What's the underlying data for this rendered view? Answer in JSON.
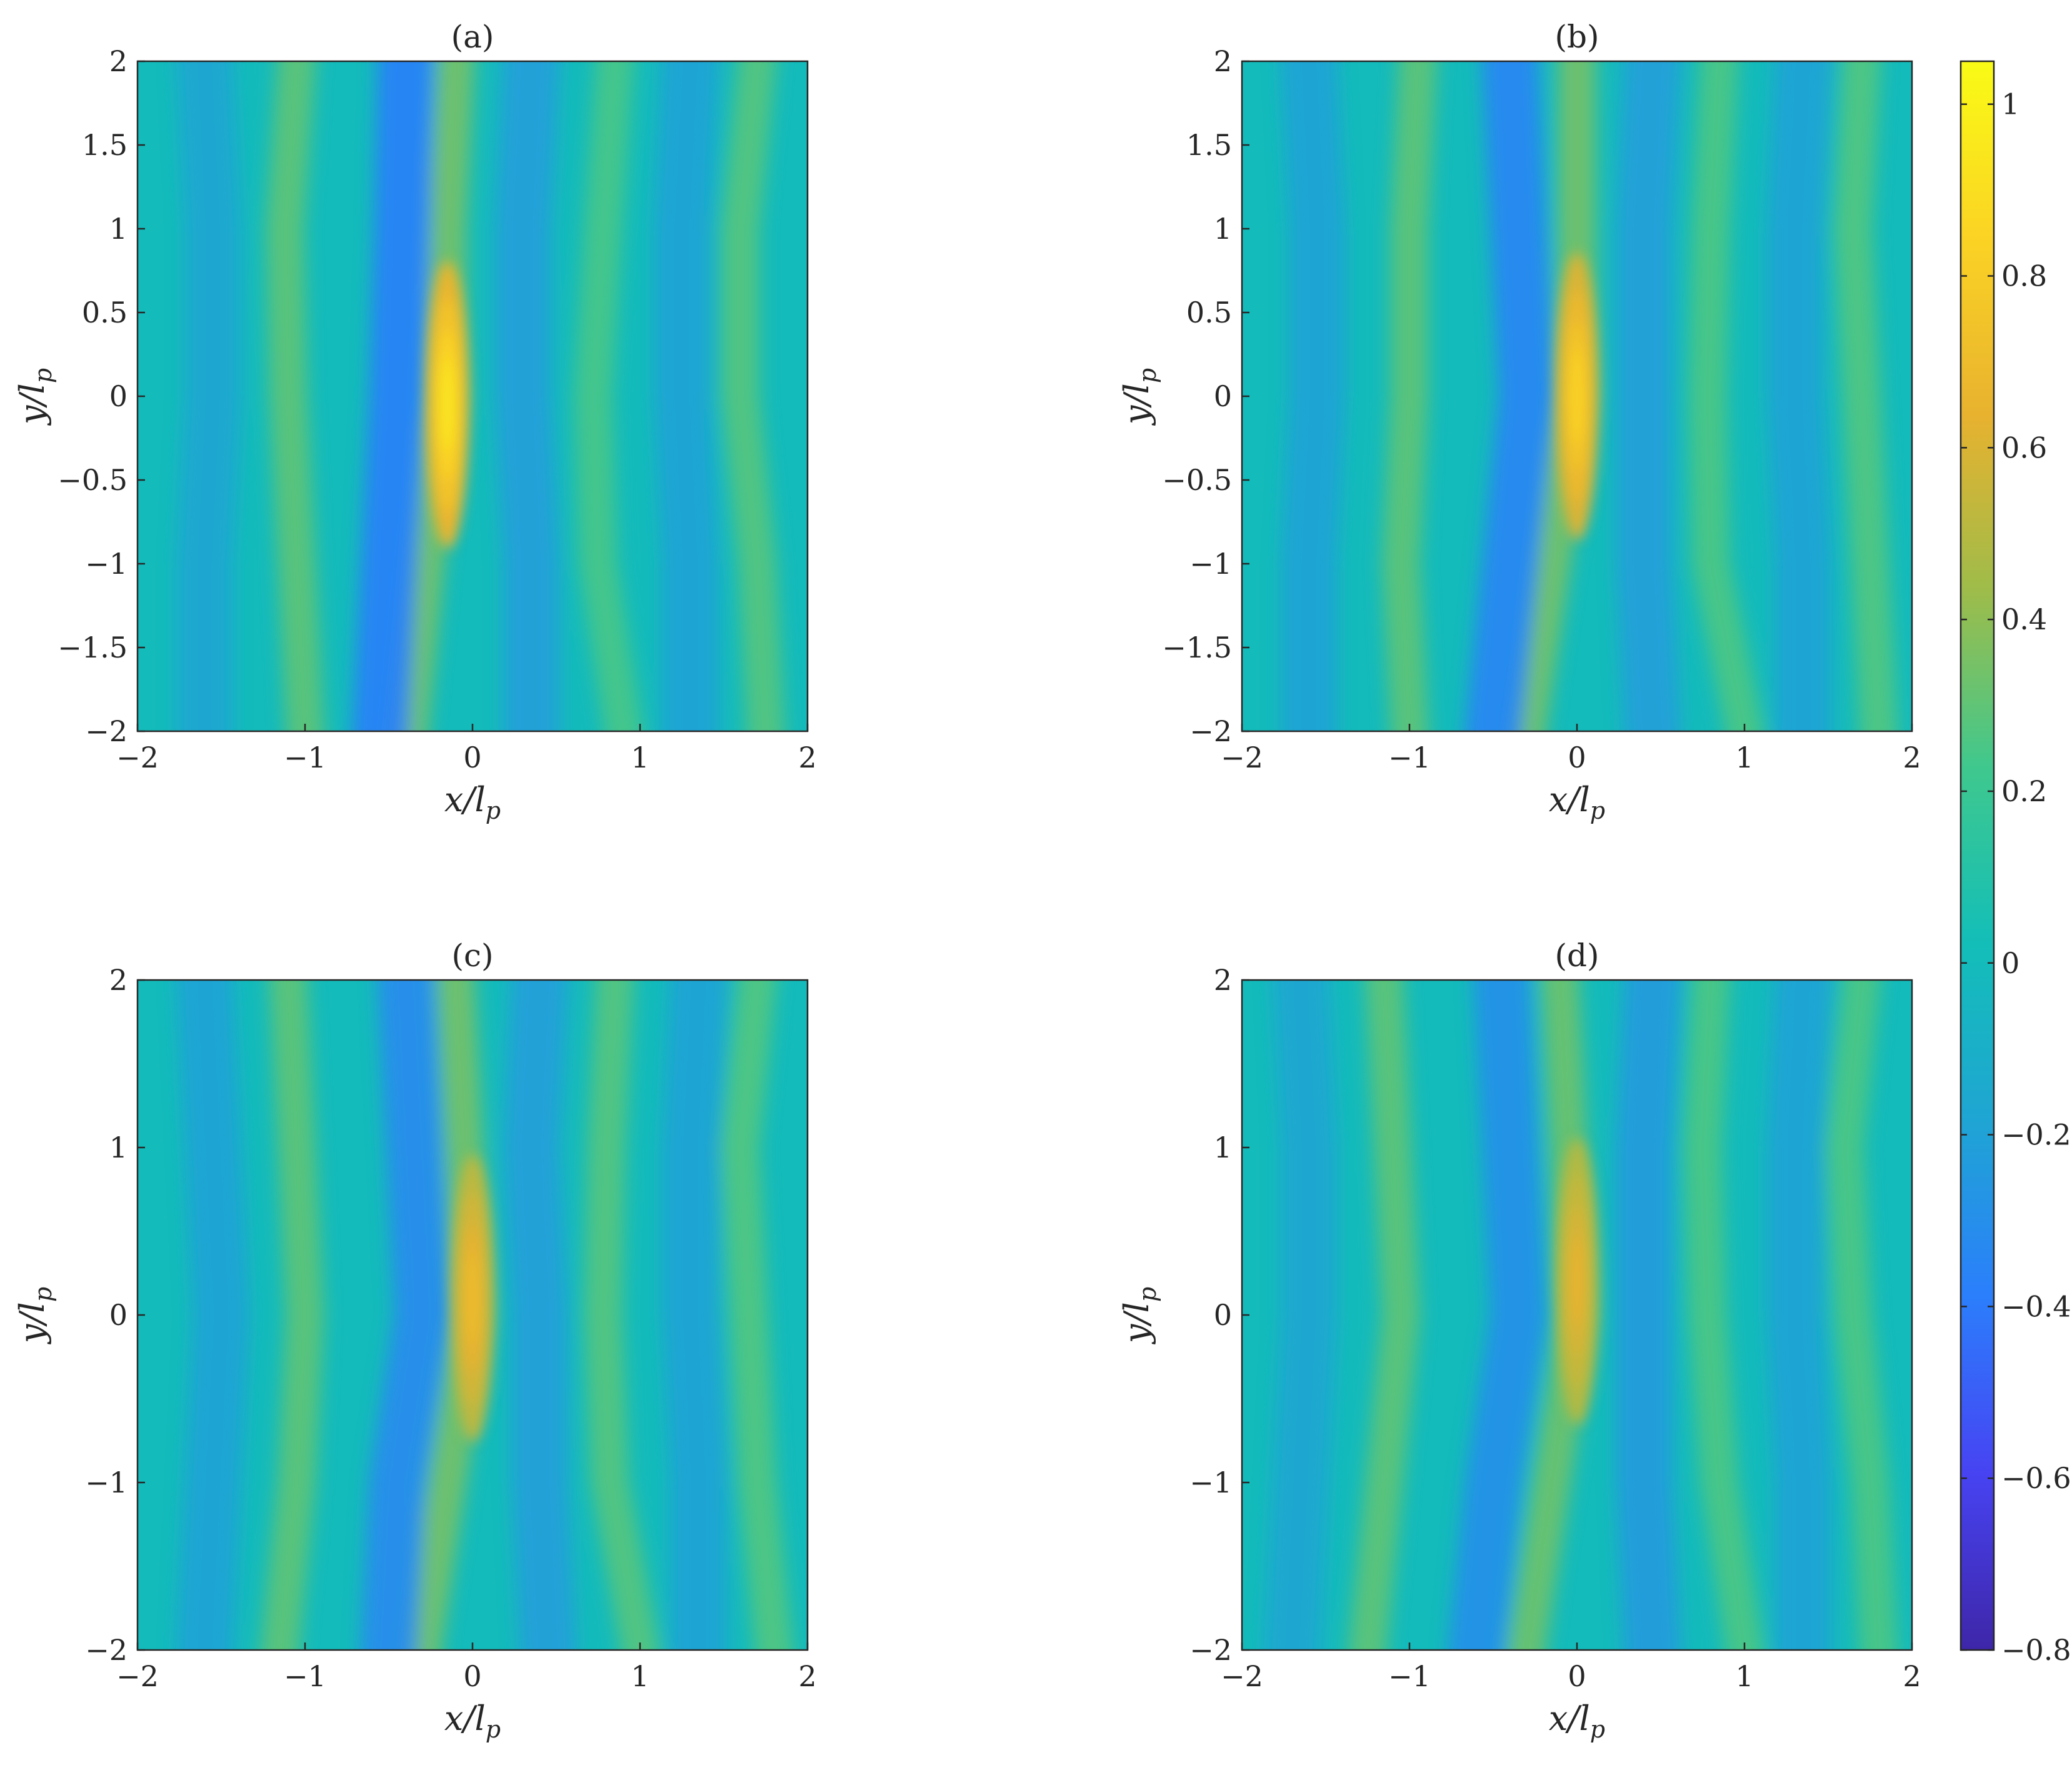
{
  "chart_data": [
    {
      "type": "heatmap",
      "title": "(a)",
      "xlabel": "x/l",
      "xlabel_subscript": "p",
      "ylabel": "y/l",
      "ylabel_subscript": "p",
      "xlim": [
        -2,
        2
      ],
      "ylim": [
        -2,
        2
      ],
      "xticks": [
        "−2",
        "−1",
        "0",
        "1",
        "2"
      ],
      "yticks": [
        "−2",
        "−1.5",
        "−1",
        "−0.5",
        "0",
        "0.5",
        "1",
        "1.5",
        "2"
      ],
      "grid": false,
      "colormap": "parula",
      "peak": {
        "x": -0.15,
        "y": -0.05,
        "value": 0.95
      },
      "ridges": [
        {
          "kind": "positive",
          "x_at_y": [
            [
              -2,
              -0.38
            ],
            [
              -1,
              -0.28
            ],
            [
              0,
              -0.15
            ],
            [
              1,
              -0.15
            ],
            [
              2,
              -0.1
            ]
          ],
          "value": 0.35
        },
        {
          "kind": "positive",
          "x_at_y": [
            [
              -2,
              -1.0
            ],
            [
              -1,
              -1.05
            ],
            [
              0,
              -1.1
            ],
            [
              1,
              -1.12
            ],
            [
              2,
              -1.05
            ]
          ],
          "value": 0.3
        },
        {
          "kind": "positive",
          "x_at_y": [
            [
              -2,
              0.9
            ],
            [
              -1,
              0.75
            ],
            [
              0,
              0.72
            ],
            [
              1,
              0.78
            ],
            [
              2,
              0.85
            ]
          ],
          "value": 0.25
        },
        {
          "kind": "positive",
          "x_at_y": [
            [
              -2,
              1.75
            ],
            [
              -1,
              1.7
            ],
            [
              0,
              1.6
            ],
            [
              1,
              1.6
            ],
            [
              2,
              1.7
            ]
          ],
          "value": 0.28
        },
        {
          "kind": "negative",
          "x_at_y": [
            [
              -2,
              -0.55
            ],
            [
              -1,
              -0.5
            ],
            [
              0,
              -0.45
            ],
            [
              1,
              -0.42
            ],
            [
              2,
              -0.4
            ]
          ],
          "value": -0.38
        },
        {
          "kind": "negative",
          "x_at_y": [
            [
              -2,
              0.35
            ],
            [
              -1,
              0.35
            ],
            [
              0,
              0.3
            ],
            [
              1,
              0.3
            ],
            [
              2,
              0.35
            ]
          ],
          "value": -0.22
        },
        {
          "kind": "negative",
          "x_at_y": [
            [
              -2,
              1.3
            ],
            [
              -1,
              1.3
            ],
            [
              0,
              1.25
            ],
            [
              1,
              1.25
            ],
            [
              2,
              1.3
            ]
          ],
          "value": -0.2
        },
        {
          "kind": "negative",
          "x_at_y": [
            [
              -2,
              -1.6
            ],
            [
              -1,
              -1.6
            ],
            [
              0,
              -1.55
            ],
            [
              1,
              -1.55
            ],
            [
              2,
              -1.6
            ]
          ],
          "value": -0.18
        }
      ]
    },
    {
      "type": "heatmap",
      "title": "(b)",
      "xlabel": "x/l",
      "xlabel_subscript": "p",
      "ylabel": "y/l",
      "ylabel_subscript": "p",
      "xlim": [
        -2,
        2
      ],
      "ylim": [
        -2,
        2
      ],
      "xticks": [
        "−2",
        "−1",
        "0",
        "1",
        "2"
      ],
      "yticks": [
        "−2",
        "−1.5",
        "−1",
        "−0.5",
        "0",
        "0.5",
        "1",
        "1.5",
        "2"
      ],
      "grid": false,
      "colormap": "parula",
      "peak": {
        "x": 0.0,
        "y": 0.0,
        "value": 0.85
      },
      "ridges": [
        {
          "kind": "positive",
          "x_at_y": [
            [
              -2,
              -0.3
            ],
            [
              -1,
              -0.15
            ],
            [
              0,
              0.0
            ],
            [
              1,
              0.0
            ],
            [
              2,
              0.0
            ]
          ],
          "value": 0.35
        },
        {
          "kind": "positive",
          "x_at_y": [
            [
              -2,
              -1.0
            ],
            [
              -1,
              -1.05
            ],
            [
              0,
              -1.0
            ],
            [
              1,
              -1.0
            ],
            [
              2,
              -0.95
            ]
          ],
          "value": 0.3
        },
        {
          "kind": "positive",
          "x_at_y": [
            [
              -2,
              1.0
            ],
            [
              -1,
              0.8
            ],
            [
              0,
              0.78
            ],
            [
              1,
              0.8
            ],
            [
              2,
              0.85
            ]
          ],
          "value": 0.26
        },
        {
          "kind": "positive",
          "x_at_y": [
            [
              -2,
              1.8
            ],
            [
              -1,
              1.75
            ],
            [
              0,
              1.7
            ],
            [
              1,
              1.65
            ],
            [
              2,
              1.7
            ]
          ],
          "value": 0.27
        },
        {
          "kind": "negative",
          "x_at_y": [
            [
              -2,
              -0.5
            ],
            [
              -1,
              -0.4
            ],
            [
              0,
              -0.3
            ],
            [
              1,
              -0.35
            ],
            [
              2,
              -0.4
            ]
          ],
          "value": -0.35
        },
        {
          "kind": "negative",
          "x_at_y": [
            [
              -2,
              0.45
            ],
            [
              -1,
              0.4
            ],
            [
              0,
              0.4
            ],
            [
              1,
              0.4
            ],
            [
              2,
              0.45
            ]
          ],
          "value": -0.22
        },
        {
          "kind": "negative",
          "x_at_y": [
            [
              -2,
              1.35
            ],
            [
              -1,
              1.35
            ],
            [
              0,
              1.3
            ],
            [
              1,
              1.3
            ],
            [
              2,
              1.35
            ]
          ],
          "value": -0.2
        },
        {
          "kind": "negative",
          "x_at_y": [
            [
              -2,
              -1.6
            ],
            [
              -1,
              -1.6
            ],
            [
              0,
              -1.55
            ],
            [
              1,
              -1.55
            ],
            [
              2,
              -1.6
            ]
          ],
          "value": -0.2
        }
      ]
    },
    {
      "type": "heatmap",
      "title": "(c)",
      "xlabel": "x/l",
      "xlabel_subscript": "p",
      "ylabel": "y/l",
      "ylabel_subscript": "p",
      "xlim": [
        -2,
        2
      ],
      "ylim": [
        -2,
        2
      ],
      "xticks": [
        "−2",
        "−1",
        "0",
        "1",
        "2"
      ],
      "yticks": [
        "−2",
        "−1",
        "0",
        "1",
        "2"
      ],
      "grid": false,
      "colormap": "parula",
      "peak": {
        "x": 0.0,
        "y": 0.1,
        "value": 0.7
      },
      "ridges": [
        {
          "kind": "positive",
          "x_at_y": [
            [
              -2,
              -0.3
            ],
            [
              -1,
              -0.15
            ],
            [
              0,
              0.0
            ],
            [
              1,
              -0.05
            ],
            [
              2,
              -0.1
            ]
          ],
          "value": 0.35
        },
        {
          "kind": "positive",
          "x_at_y": [
            [
              -2,
              -1.15
            ],
            [
              -1,
              -1.05
            ],
            [
              0,
              -1.0
            ],
            [
              1,
              -1.05
            ],
            [
              2,
              -1.1
            ]
          ],
          "value": 0.3
        },
        {
          "kind": "positive",
          "x_at_y": [
            [
              -2,
              1.0
            ],
            [
              -1,
              0.82
            ],
            [
              0,
              0.78
            ],
            [
              1,
              0.8
            ],
            [
              2,
              0.85
            ]
          ],
          "value": 0.28
        },
        {
          "kind": "positive",
          "x_at_y": [
            [
              -2,
              1.8
            ],
            [
              -1,
              1.7
            ],
            [
              0,
              1.65
            ],
            [
              1,
              1.6
            ],
            [
              2,
              1.7
            ]
          ],
          "value": 0.27
        },
        {
          "kind": "negative",
          "x_at_y": [
            [
              -2,
              -0.5
            ],
            [
              -1,
              -0.45
            ],
            [
              0,
              -0.3
            ],
            [
              1,
              -0.35
            ],
            [
              2,
              -0.4
            ]
          ],
          "value": -0.32
        },
        {
          "kind": "negative",
          "x_at_y": [
            [
              -2,
              0.45
            ],
            [
              -1,
              0.4
            ],
            [
              0,
              0.4
            ],
            [
              1,
              0.35
            ],
            [
              2,
              0.4
            ]
          ],
          "value": -0.22
        },
        {
          "kind": "negative",
          "x_at_y": [
            [
              -2,
              1.35
            ],
            [
              -1,
              1.35
            ],
            [
              0,
              1.3
            ],
            [
              1,
              1.3
            ],
            [
              2,
              1.35
            ]
          ],
          "value": -0.2
        },
        {
          "kind": "negative",
          "x_at_y": [
            [
              -2,
              -1.6
            ],
            [
              -1,
              -1.55
            ],
            [
              0,
              -1.5
            ],
            [
              1,
              -1.55
            ],
            [
              2,
              -1.6
            ]
          ],
          "value": -0.2
        }
      ]
    },
    {
      "type": "heatmap",
      "title": "(d)",
      "xlabel": "x/l",
      "xlabel_subscript": "p",
      "ylabel": "y/l",
      "ylabel_subscript": "p",
      "xlim": [
        -2,
        2
      ],
      "ylim": [
        -2,
        2
      ],
      "xticks": [
        "−2",
        "−1",
        "0",
        "1",
        "2"
      ],
      "yticks": [
        "−2",
        "−1",
        "0",
        "1",
        "2"
      ],
      "grid": false,
      "colormap": "parula",
      "peak": {
        "x": 0.0,
        "y": 0.2,
        "value": 0.65
      },
      "ridges": [
        {
          "kind": "positive",
          "x_at_y": [
            [
              -2,
              -0.3
            ],
            [
              -1,
              -0.15
            ],
            [
              0,
              0.0
            ],
            [
              1,
              -0.05
            ],
            [
              2,
              -0.1
            ]
          ],
          "value": 0.33
        },
        {
          "kind": "positive",
          "x_at_y": [
            [
              -2,
              -1.25
            ],
            [
              -1,
              -1.15
            ],
            [
              0,
              -1.05
            ],
            [
              1,
              -1.1
            ],
            [
              2,
              -1.15
            ]
          ],
          "value": 0.3
        },
        {
          "kind": "positive",
          "x_at_y": [
            [
              -2,
              1.0
            ],
            [
              -1,
              0.85
            ],
            [
              0,
              0.78
            ],
            [
              1,
              0.75
            ],
            [
              2,
              0.8
            ]
          ],
          "value": 0.26
        },
        {
          "kind": "positive",
          "x_at_y": [
            [
              -2,
              1.8
            ],
            [
              -1,
              1.75
            ],
            [
              0,
              1.65
            ],
            [
              1,
              1.6
            ],
            [
              2,
              1.7
            ]
          ],
          "value": 0.26
        },
        {
          "kind": "negative",
          "x_at_y": [
            [
              -2,
              -0.6
            ],
            [
              -1,
              -0.5
            ],
            [
              0,
              -0.35
            ],
            [
              1,
              -0.4
            ],
            [
              2,
              -0.45
            ]
          ],
          "value": -0.3
        },
        {
          "kind": "negative",
          "x_at_y": [
            [
              -2,
              0.45
            ],
            [
              -1,
              0.4
            ],
            [
              0,
              0.4
            ],
            [
              1,
              0.4
            ],
            [
              2,
              0.45
            ]
          ],
          "value": -0.24
        },
        {
          "kind": "negative",
          "x_at_y": [
            [
              -2,
              1.35
            ],
            [
              -1,
              1.35
            ],
            [
              0,
              1.3
            ],
            [
              1,
              1.3
            ],
            [
              2,
              1.35
            ]
          ],
          "value": -0.2
        },
        {
          "kind": "negative",
          "x_at_y": [
            [
              -2,
              -1.7
            ],
            [
              -1,
              -1.65
            ],
            [
              0,
              -1.6
            ],
            [
              1,
              -1.6
            ],
            [
              2,
              -1.65
            ]
          ],
          "value": -0.18
        }
      ]
    }
  ],
  "colorbar": {
    "limits": [
      -0.8,
      1.05
    ],
    "background_value": 0.0,
    "tick_values": [
      1,
      0.8,
      0.6,
      0.4,
      0.2,
      0,
      -0.2,
      -0.4,
      -0.6,
      -0.8
    ],
    "tick_labels": [
      "1",
      "0.8",
      "0.6",
      "0.4",
      "0.2",
      "0",
      "−0.2",
      "−0.4",
      "−0.6",
      "−0.8"
    ],
    "colors": [
      "#3e26a8",
      "#4743f2",
      "#2b7efc",
      "#1fa5d3",
      "#13beb8",
      "#3fc88e",
      "#9ebc4a",
      "#e8b22f",
      "#fbd324",
      "#f9fb15"
    ]
  }
}
